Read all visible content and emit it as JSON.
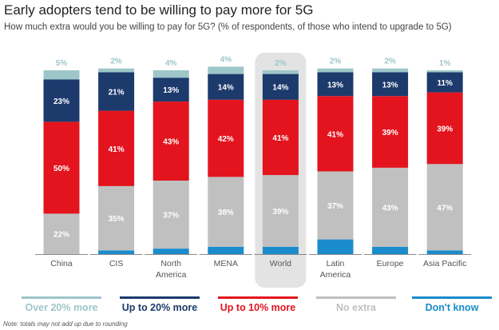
{
  "chart_data": {
    "type": "bar",
    "stacked": true,
    "title": "Early adopters tend to be willing to pay more for 5G",
    "subtitle": "How much extra would you be willing to pay for 5G? (% of respondents, of those who intend to upgrade to 5G)",
    "note": "Note: totals may not add up due to rounding",
    "categories": [
      "China",
      "CIS",
      "North America",
      "MENA",
      "World",
      "Latin America",
      "Europe",
      "Asia Pacific"
    ],
    "category_lines": [
      [
        "China"
      ],
      [
        "CIS"
      ],
      [
        "North",
        "America"
      ],
      [
        "MENA"
      ],
      [
        "World"
      ],
      [
        "Latin",
        "America"
      ],
      [
        "Europe"
      ],
      [
        "Asia Pacific"
      ]
    ],
    "highlighted_category": "World",
    "legend_placement": "bottom",
    "unit": "%",
    "series": [
      {
        "name": "Don't know",
        "color": "#1a8ccc",
        "label_color": "#1a8ccc",
        "values": [
          0,
          2,
          3,
          4,
          4,
          8,
          4,
          2
        ]
      },
      {
        "name": "No extra",
        "color": "#c0c0c0",
        "label_color": "#ffffff",
        "values": [
          22,
          35,
          37,
          38,
          39,
          37,
          43,
          47
        ]
      },
      {
        "name": "Up to 10% more",
        "color": "#e3141e",
        "label_color": "#ffffff",
        "values": [
          50,
          41,
          43,
          42,
          41,
          41,
          39,
          39
        ]
      },
      {
        "name": "Up to 20% more",
        "color": "#1c3a6c",
        "label_color": "#ffffff",
        "values": [
          23,
          21,
          13,
          14,
          14,
          13,
          13,
          11
        ]
      },
      {
        "name": "Over 20% more",
        "color": "#9dc6c8",
        "label_color": "#9dc6c8",
        "values": [
          5,
          2,
          4,
          4,
          2,
          2,
          2,
          1
        ]
      }
    ],
    "legend_order": [
      "Over 20% more",
      "Up to 20% more",
      "Up to 10% more",
      "No extra",
      "Don't know"
    ],
    "legend_text_colors": {
      "Over 20% more": "#9dc6c8",
      "Up to 20% more": "#1c3a6c",
      "Up to 10% more": "#e3141e",
      "No extra": "#c0c0c0",
      "Don't know": "#1a8ccc"
    }
  }
}
